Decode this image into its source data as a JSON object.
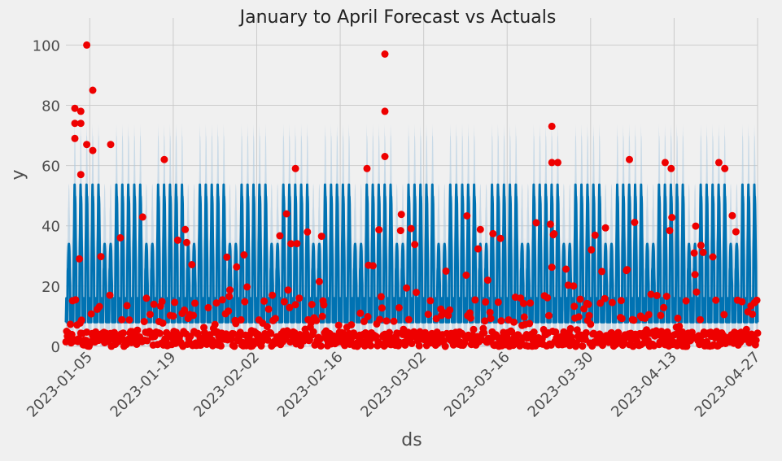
{
  "chart_data": {
    "type": "line",
    "title": "January to April Forecast vs Actuals",
    "xlabel": "ds",
    "ylabel": "y",
    "x_tick_labels": [
      "2023-01-05",
      "2023-01-19",
      "2023-02-02",
      "2023-02-16",
      "2023-03-02",
      "2023-03-16",
      "2023-03-30",
      "2023-04-13",
      "2023-04-27"
    ],
    "y_tick_labels": [
      "0",
      "20",
      "40",
      "60",
      "80",
      "100"
    ],
    "xlim": [
      "2023-01-01",
      "2023-04-27"
    ],
    "ylim": [
      0,
      109
    ],
    "grid": true,
    "colors": {
      "background": "#f0f0f0",
      "grid": "#cbcbcb",
      "forecast": "#0072b2",
      "uncertainty": "#a9c9e0",
      "actuals": "#ee0000",
      "text": "#4d4d4d"
    },
    "series": [
      {
        "kind": "forecast",
        "pattern": "hourly forecast with strong daily cycle; weekday daily peaks ~50-56, weekend peaks ~30-38, troughs ~5-20; uncertainty band width ~±20"
      },
      {
        "kind": "actuals",
        "pattern": "hourly observed points mostly 0-10 with scattered highs",
        "notable_points": [
          {
            "x": "2023-01-02",
            "y": 79
          },
          {
            "x": "2023-01-02",
            "y": 74
          },
          {
            "x": "2023-01-02",
            "y": 69
          },
          {
            "x": "2023-01-03",
            "y": 78
          },
          {
            "x": "2023-01-03",
            "y": 74
          },
          {
            "x": "2023-01-03",
            "y": 57
          },
          {
            "x": "2023-01-04",
            "y": 100
          },
          {
            "x": "2023-01-04",
            "y": 67
          },
          {
            "x": "2023-01-05",
            "y": 65
          },
          {
            "x": "2023-01-05",
            "y": 85
          },
          {
            "x": "2023-01-08",
            "y": 67
          },
          {
            "x": "2023-01-17",
            "y": 62
          },
          {
            "x": "2023-02-08",
            "y": 59
          },
          {
            "x": "2023-02-20",
            "y": 59
          },
          {
            "x": "2023-02-23",
            "y": 97
          },
          {
            "x": "2023-02-23",
            "y": 78
          },
          {
            "x": "2023-02-23",
            "y": 63
          },
          {
            "x": "2023-03-23",
            "y": 73
          },
          {
            "x": "2023-03-23",
            "y": 61
          },
          {
            "x": "2023-03-24",
            "y": 61
          },
          {
            "x": "2023-04-05",
            "y": 62
          },
          {
            "x": "2023-04-11",
            "y": 61
          },
          {
            "x": "2023-04-12",
            "y": 59
          },
          {
            "x": "2023-04-20",
            "y": 61
          },
          {
            "x": "2023-04-21",
            "y": 59
          }
        ]
      }
    ]
  }
}
